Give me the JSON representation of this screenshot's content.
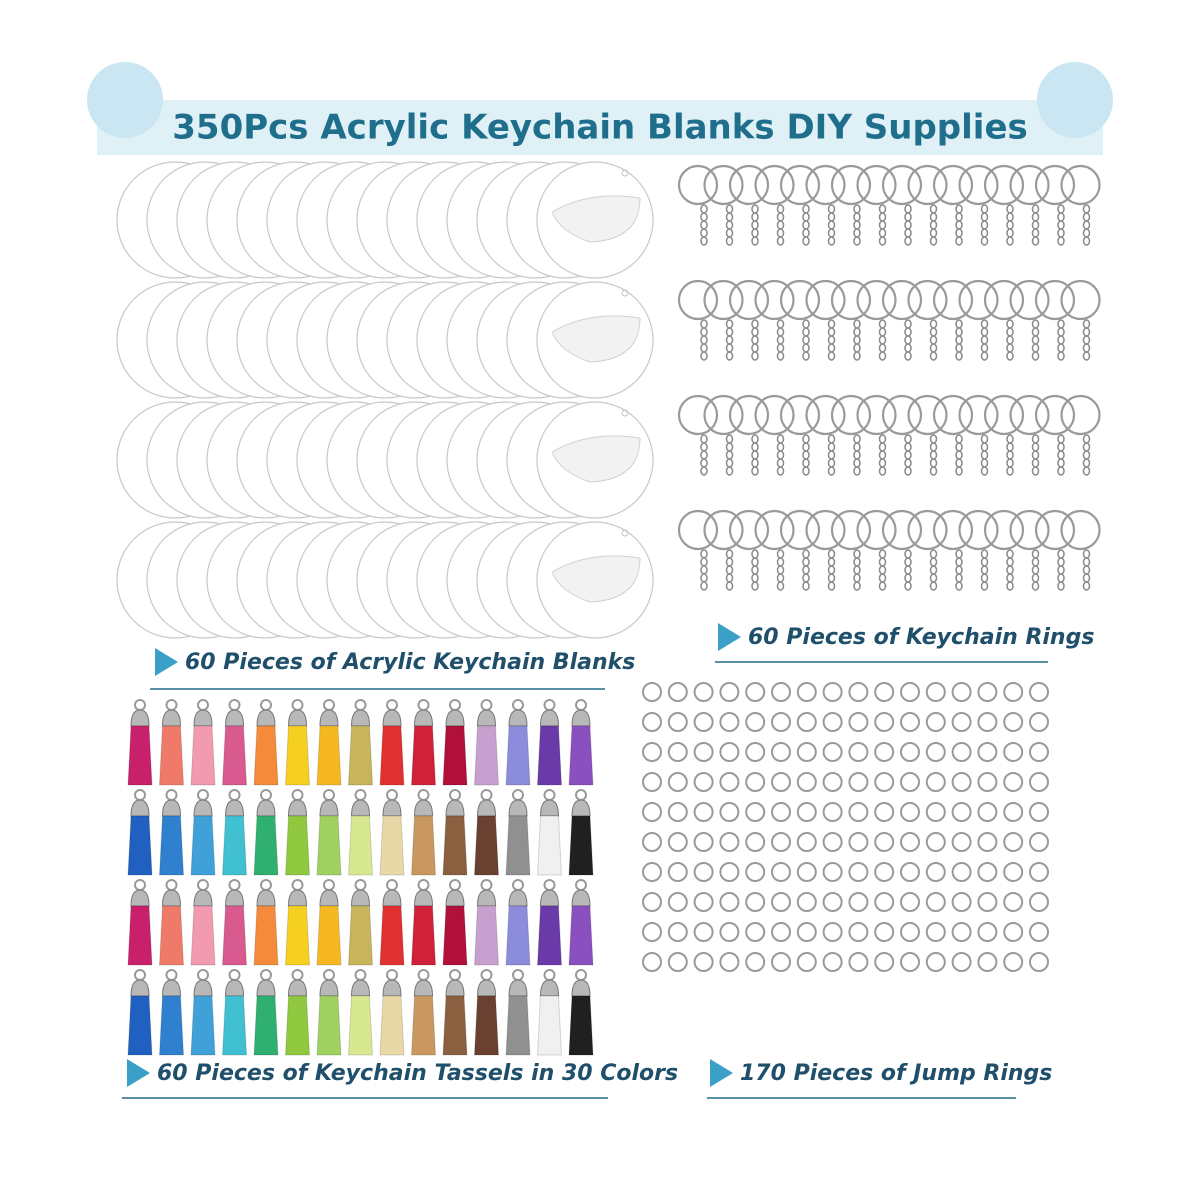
{
  "header": {
    "title": "350Pcs Acrylic Keychain Blanks DIY Supplies"
  },
  "sections": [
    {
      "label": "60 Pieces of Acrylic Keychain Blanks"
    },
    {
      "label": "60 Pieces of Keychain Rings"
    },
    {
      "label": "60 Pieces of Keychain Tassels in 30 Colors"
    },
    {
      "label": "170 Pieces of Jump Rings"
    }
  ]
}
